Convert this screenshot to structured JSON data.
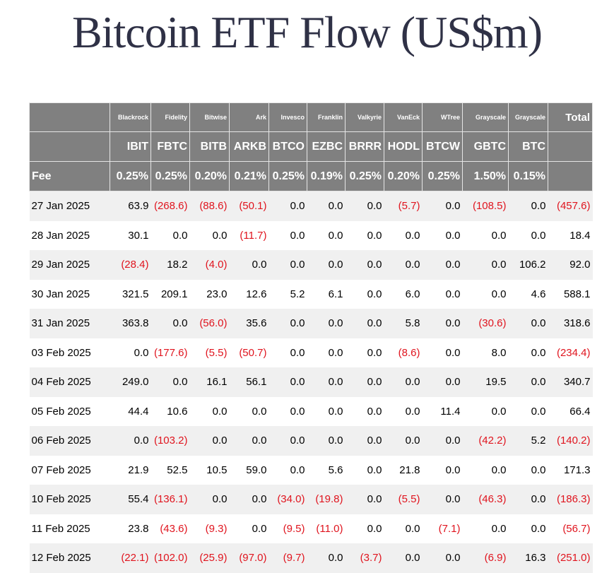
{
  "title": "Bitcoin ETF Flow (US$m)",
  "header": {
    "issuers": [
      "Blackrock",
      "Fidelity",
      "Bitwise",
      "Ark",
      "Invesco",
      "Franklin",
      "Valkyrie",
      "VanEck",
      "WTree",
      "Grayscale",
      "Grayscale"
    ],
    "total_label": "Total",
    "tickers": [
      "IBIT",
      "FBTC",
      "BITB",
      "ARKB",
      "BTCO",
      "EZBC",
      "BRRR",
      "HODL",
      "BTCW",
      "GBTC",
      "BTC"
    ],
    "fee_label": "Fee",
    "fees": [
      "0.25%",
      "0.25%",
      "0.20%",
      "0.21%",
      "0.25%",
      "0.19%",
      "0.25%",
      "0.20%",
      "0.25%",
      "1.50%",
      "0.15%"
    ]
  },
  "rows": [
    {
      "date": "27 Jan 2025",
      "values": [
        "63.9",
        "(268.6)",
        "(88.6)",
        "(50.1)",
        "0.0",
        "0.0",
        "0.0",
        "(5.7)",
        "0.0",
        "(108.5)",
        "0.0",
        "(457.6)"
      ]
    },
    {
      "date": "28 Jan 2025",
      "values": [
        "30.1",
        "0.0",
        "0.0",
        "(11.7)",
        "0.0",
        "0.0",
        "0.0",
        "0.0",
        "0.0",
        "0.0",
        "0.0",
        "18.4"
      ]
    },
    {
      "date": "29 Jan 2025",
      "values": [
        "(28.4)",
        "18.2",
        "(4.0)",
        "0.0",
        "0.0",
        "0.0",
        "0.0",
        "0.0",
        "0.0",
        "0.0",
        "106.2",
        "92.0"
      ]
    },
    {
      "date": "30 Jan 2025",
      "values": [
        "321.5",
        "209.1",
        "23.0",
        "12.6",
        "5.2",
        "6.1",
        "0.0",
        "6.0",
        "0.0",
        "0.0",
        "4.6",
        "588.1"
      ]
    },
    {
      "date": "31 Jan 2025",
      "values": [
        "363.8",
        "0.0",
        "(56.0)",
        "35.6",
        "0.0",
        "0.0",
        "0.0",
        "5.8",
        "0.0",
        "(30.6)",
        "0.0",
        "318.6"
      ]
    },
    {
      "date": "03 Feb 2025",
      "values": [
        "0.0",
        "(177.6)",
        "(5.5)",
        "(50.7)",
        "0.0",
        "0.0",
        "0.0",
        "(8.6)",
        "0.0",
        "8.0",
        "0.0",
        "(234.4)"
      ]
    },
    {
      "date": "04 Feb 2025",
      "values": [
        "249.0",
        "0.0",
        "16.1",
        "56.1",
        "0.0",
        "0.0",
        "0.0",
        "0.0",
        "0.0",
        "19.5",
        "0.0",
        "340.7"
      ]
    },
    {
      "date": "05 Feb 2025",
      "values": [
        "44.4",
        "10.6",
        "0.0",
        "0.0",
        "0.0",
        "0.0",
        "0.0",
        "0.0",
        "11.4",
        "0.0",
        "0.0",
        "66.4"
      ]
    },
    {
      "date": "06 Feb 2025",
      "values": [
        "0.0",
        "(103.2)",
        "0.0",
        "0.0",
        "0.0",
        "0.0",
        "0.0",
        "0.0",
        "0.0",
        "(42.2)",
        "5.2",
        "(140.2)"
      ]
    },
    {
      "date": "07 Feb 2025",
      "values": [
        "21.9",
        "52.5",
        "10.5",
        "59.0",
        "0.0",
        "5.6",
        "0.0",
        "21.8",
        "0.0",
        "0.0",
        "0.0",
        "171.3"
      ]
    },
    {
      "date": "10 Feb 2025",
      "values": [
        "55.4",
        "(136.1)",
        "0.0",
        "0.0",
        "(34.0)",
        "(19.8)",
        "0.0",
        "(5.5)",
        "0.0",
        "(46.3)",
        "0.0",
        "(186.3)"
      ]
    },
    {
      "date": "11 Feb 2025",
      "values": [
        "23.8",
        "(43.6)",
        "(9.3)",
        "0.0",
        "(9.5)",
        "(11.0)",
        "0.0",
        "0.0",
        "(7.1)",
        "0.0",
        "0.0",
        "(56.7)"
      ]
    },
    {
      "date": "12 Feb 2025",
      "values": [
        "(22.1)",
        "(102.0)",
        "(25.9)",
        "(97.0)",
        "(9.7)",
        "0.0",
        "(3.7)",
        "0.0",
        "0.0",
        "(6.9)",
        "16.3",
        "(251.0)"
      ]
    }
  ],
  "colors": {
    "header_bg": "#808080",
    "row_shade": "#f0f0f0",
    "negative": "#e0141e",
    "title": "#2f3146"
  }
}
